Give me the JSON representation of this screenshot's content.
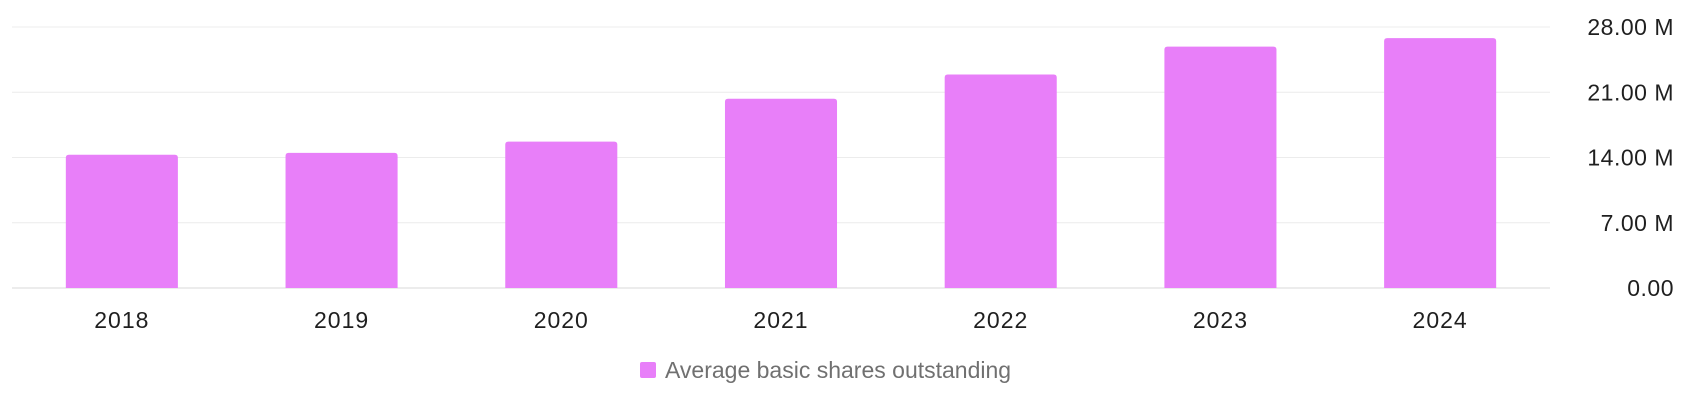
{
  "chart_data": {
    "type": "bar",
    "categories": [
      "2018",
      "2019",
      "2020",
      "2021",
      "2022",
      "2023",
      "2024"
    ],
    "series": [
      {
        "name": "Average basic shares outstanding",
        "color": "#e87ff9",
        "values": [
          14.3,
          14.5,
          15.7,
          20.3,
          22.9,
          25.9,
          26.8
        ]
      }
    ],
    "y_ticks": [
      {
        "value": 0,
        "label": "0.00"
      },
      {
        "value": 7,
        "label": "7.00 M"
      },
      {
        "value": 14,
        "label": "14.00 M"
      },
      {
        "value": 21,
        "label": "21.00 M"
      },
      {
        "value": 28,
        "label": "28.00 M"
      }
    ],
    "ylim": [
      0,
      28
    ],
    "y_axis_side": "right",
    "grid": true,
    "legend_position": "bottom-center",
    "title": "",
    "xlabel": "",
    "ylabel": ""
  }
}
